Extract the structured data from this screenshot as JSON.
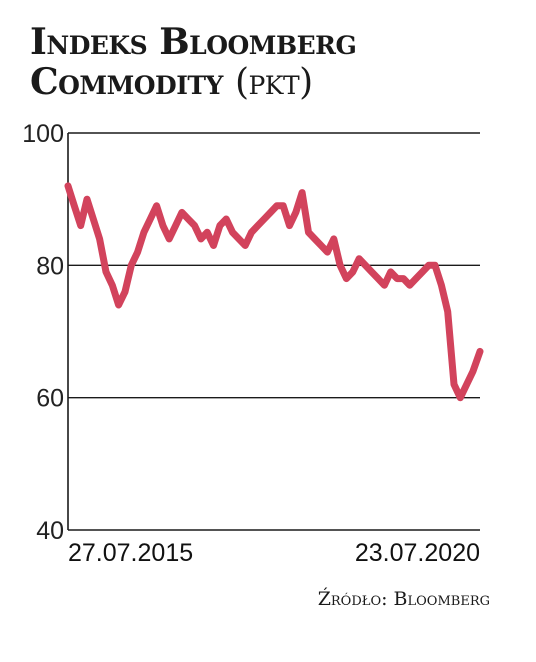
{
  "title": {
    "main": "Indeks Bloomberg Commodity",
    "unit": "(pkt)"
  },
  "source": "Źródło: Bloomberg",
  "colors": {
    "line": "#d2435c",
    "grid": "#1a1a1a",
    "text": "#1a1a1a"
  },
  "chart_data": {
    "type": "line",
    "title": "Indeks Bloomberg Commodity (pkt)",
    "xlabel": "",
    "ylabel": "",
    "ylim": [
      40,
      100
    ],
    "yticks": [
      100,
      80,
      60,
      40
    ],
    "grid": true,
    "x_tick_labels": [
      "27.07.2015",
      "23.07.2020"
    ],
    "x_range": [
      "2015-07-27",
      "2020-07-23"
    ],
    "series": [
      {
        "x": [
          "2015-07-27",
          "2015-08-24",
          "2015-09-21",
          "2015-10-19",
          "2015-11-16",
          "2015-12-14",
          "2016-01-11",
          "2016-02-08",
          "2016-03-07",
          "2016-04-04",
          "2016-05-02",
          "2016-05-30",
          "2016-06-27",
          "2016-07-25",
          "2016-08-22",
          "2016-09-19",
          "2016-10-17",
          "2016-11-14",
          "2016-12-12",
          "2017-01-09",
          "2017-02-06",
          "2017-03-06",
          "2017-04-03",
          "2017-05-01",
          "2017-05-29",
          "2017-06-26",
          "2017-07-24",
          "2017-08-21",
          "2017-09-18",
          "2017-10-16",
          "2017-11-13",
          "2017-12-11",
          "2018-01-08",
          "2018-02-05",
          "2018-03-05",
          "2018-04-02",
          "2018-04-30",
          "2018-05-28",
          "2018-06-25",
          "2018-07-23",
          "2018-08-20",
          "2018-09-17",
          "2018-10-15",
          "2018-11-12",
          "2018-12-10",
          "2019-01-07",
          "2019-02-04",
          "2019-03-04",
          "2019-04-01",
          "2019-04-29",
          "2019-05-27",
          "2019-06-24",
          "2019-07-22",
          "2019-08-19",
          "2019-09-16",
          "2019-10-14",
          "2019-11-11",
          "2019-12-09",
          "2020-01-06",
          "2020-02-03",
          "2020-03-02",
          "2020-03-30",
          "2020-04-27",
          "2020-05-25",
          "2020-06-22",
          "2020-07-23"
        ],
        "values": [
          92,
          89,
          86,
          90,
          87,
          84,
          79,
          77,
          74,
          76,
          80,
          82,
          85,
          87,
          89,
          86,
          84,
          86,
          88,
          87,
          86,
          84,
          85,
          83,
          86,
          87,
          85,
          84,
          83,
          85,
          86,
          87,
          88,
          89,
          89,
          86,
          88,
          91,
          85,
          84,
          83,
          82,
          84,
          80,
          78,
          79,
          81,
          80,
          79,
          78,
          77,
          79,
          78,
          78,
          77,
          78,
          79,
          80,
          80,
          77,
          73,
          62,
          60,
          62,
          64,
          67
        ]
      }
    ]
  }
}
